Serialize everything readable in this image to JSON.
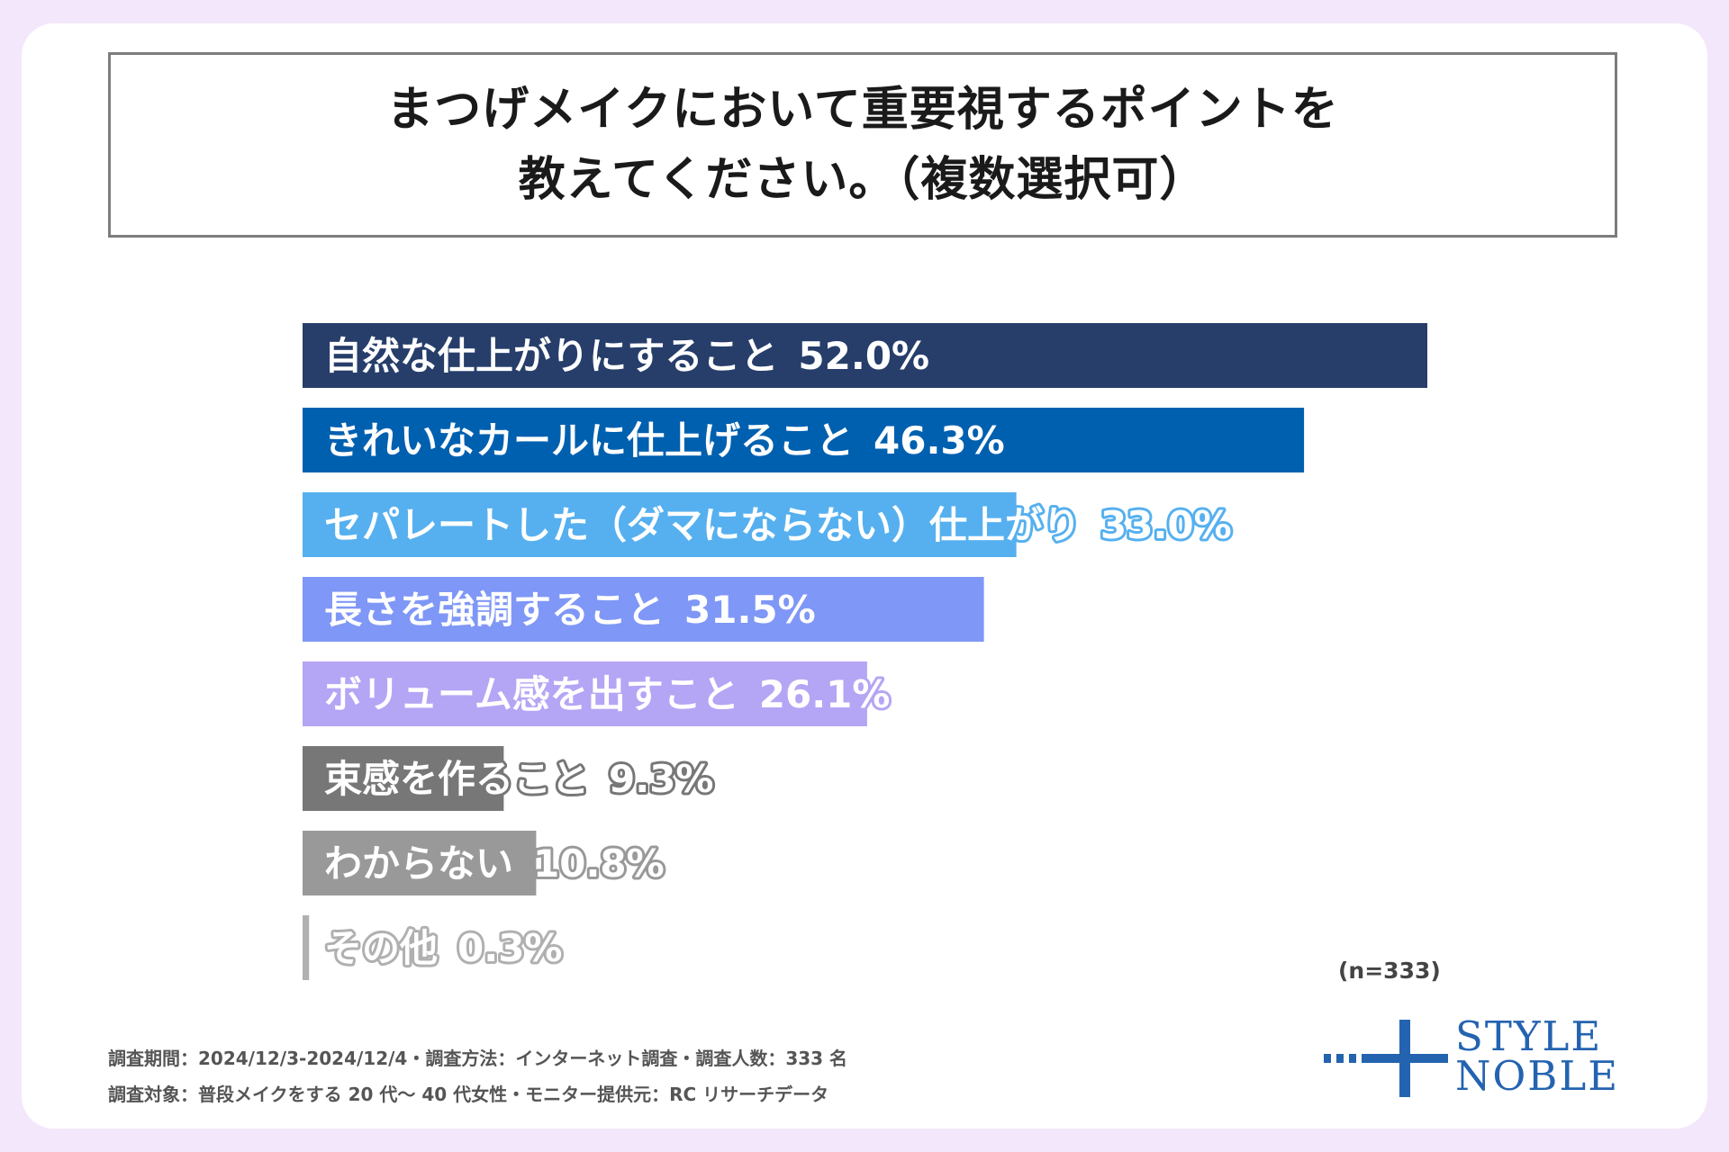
{
  "title_lines": [
    "まつげメイクにおいて重要視するポイントを",
    "教えてください。（複数選択可）"
  ],
  "chart_data": {
    "type": "bar",
    "orientation": "horizontal",
    "title": "まつげメイクにおいて重要視するポイントを教えてください。（複数選択可）",
    "categories": [
      "自然な仕上がりにすること",
      "きれいなカールに仕上げること",
      "セパレートした（ダマにならない）仕上がり",
      "長さを強調すること",
      "ボリューム感を出すこと",
      "束感を作ること",
      "わからない",
      "その他"
    ],
    "values": [
      52.0,
      46.3,
      33.0,
      31.5,
      26.1,
      9.3,
      10.8,
      0.3
    ],
    "value_labels": [
      "52.0%",
      "46.3%",
      "33.0%",
      "31.5%",
      "26.1%",
      "9.3%",
      "10.8%",
      "0.3%"
    ],
    "colors": [
      "#273e6b",
      "#0060b0",
      "#56b0ef",
      "#7f97f6",
      "#b5a5f5",
      "#777777",
      "#999999",
      "#b0b0b0"
    ],
    "xlim": [
      0,
      52.0
    ],
    "grid": false,
    "legend": "none"
  },
  "n_note": "(n=333)",
  "footnotes": [
    "調査期間：2024/12/3-2024/12/4・調査方法：インターネット調査・調査人数：333 名",
    "調査対象：普段メイクをする 20 代～ 40 代女性・モニター提供元：RC リサーチデータ"
  ],
  "logo": {
    "line1": "STYLE",
    "line2": "NOBLE",
    "color": "#2463b0"
  }
}
